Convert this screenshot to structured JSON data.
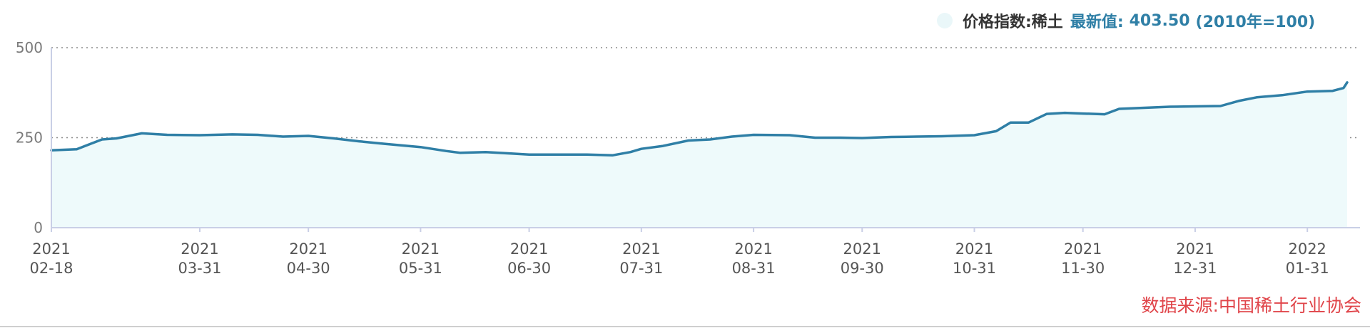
{
  "legend": {
    "swatch_color": "#eaf7f9",
    "series_label": "价格指数:稀土",
    "latest_label": "最新值:",
    "latest_value": "403.50",
    "base_note": "(2010年=100)"
  },
  "source": {
    "label": "数据来源:",
    "name": "中国稀土行业协会"
  },
  "chart_data": {
    "type": "area",
    "series": [
      {
        "name": "价格指数:稀土",
        "color": "#2f7fa6",
        "fill": "#eefafb"
      }
    ],
    "x_start": "2021-02-18",
    "x_end": "2022-02-11",
    "ylim": [
      0,
      500
    ],
    "yticks": [
      0,
      250,
      500
    ],
    "grid": "dotted horizontal at 250 and 500",
    "x_ticks": [
      {
        "date": "2021-02-18",
        "year": "2021",
        "md": "02-18"
      },
      {
        "date": "2021-03-31",
        "year": "2021",
        "md": "03-31"
      },
      {
        "date": "2021-04-30",
        "year": "2021",
        "md": "04-30"
      },
      {
        "date": "2021-05-31",
        "year": "2021",
        "md": "05-31"
      },
      {
        "date": "2021-06-30",
        "year": "2021",
        "md": "06-30"
      },
      {
        "date": "2021-07-31",
        "year": "2021",
        "md": "07-31"
      },
      {
        "date": "2021-08-31",
        "year": "2021",
        "md": "08-31"
      },
      {
        "date": "2021-09-30",
        "year": "2021",
        "md": "09-30"
      },
      {
        "date": "2021-10-31",
        "year": "2021",
        "md": "10-31"
      },
      {
        "date": "2021-11-30",
        "year": "2021",
        "md": "11-30"
      },
      {
        "date": "2021-12-31",
        "year": "2021",
        "md": "12-31"
      },
      {
        "date": "2022-01-31",
        "year": "2022",
        "md": "01-31"
      }
    ],
    "points": [
      [
        "2021-02-18",
        215
      ],
      [
        "2021-02-25",
        218
      ],
      [
        "2021-03-04",
        245
      ],
      [
        "2021-03-08",
        248
      ],
      [
        "2021-03-15",
        262
      ],
      [
        "2021-03-22",
        258
      ],
      [
        "2021-03-31",
        257
      ],
      [
        "2021-04-09",
        259
      ],
      [
        "2021-04-16",
        258
      ],
      [
        "2021-04-23",
        253
      ],
      [
        "2021-04-30",
        255
      ],
      [
        "2021-05-07",
        248
      ],
      [
        "2021-05-14",
        240
      ],
      [
        "2021-05-21",
        233
      ],
      [
        "2021-05-31",
        224
      ],
      [
        "2021-06-07",
        213
      ],
      [
        "2021-06-11",
        208
      ],
      [
        "2021-06-18",
        210
      ],
      [
        "2021-06-25",
        206
      ],
      [
        "2021-06-30",
        203
      ],
      [
        "2021-07-09",
        203
      ],
      [
        "2021-07-16",
        203
      ],
      [
        "2021-07-23",
        201
      ],
      [
        "2021-07-28",
        210
      ],
      [
        "2021-07-31",
        219
      ],
      [
        "2021-08-06",
        227
      ],
      [
        "2021-08-13",
        242
      ],
      [
        "2021-08-19",
        245
      ],
      [
        "2021-08-25",
        253
      ],
      [
        "2021-08-31",
        258
      ],
      [
        "2021-09-10",
        257
      ],
      [
        "2021-09-17",
        250
      ],
      [
        "2021-09-24",
        250
      ],
      [
        "2021-09-30",
        249
      ],
      [
        "2021-10-08",
        252
      ],
      [
        "2021-10-15",
        253
      ],
      [
        "2021-10-22",
        254
      ],
      [
        "2021-10-31",
        257
      ],
      [
        "2021-11-06",
        268
      ],
      [
        "2021-11-10",
        292
      ],
      [
        "2021-11-15",
        292
      ],
      [
        "2021-11-20",
        316
      ],
      [
        "2021-11-25",
        319
      ],
      [
        "2021-11-30",
        317
      ],
      [
        "2021-12-06",
        315
      ],
      [
        "2021-12-10",
        330
      ],
      [
        "2021-12-17",
        333
      ],
      [
        "2021-12-24",
        336
      ],
      [
        "2021-12-31",
        337
      ],
      [
        "2022-01-07",
        338
      ],
      [
        "2022-01-12",
        352
      ],
      [
        "2022-01-17",
        362
      ],
      [
        "2022-01-24",
        368
      ],
      [
        "2022-01-31",
        378
      ],
      [
        "2022-02-07",
        380
      ],
      [
        "2022-02-10",
        388
      ],
      [
        "2022-02-11",
        403.5
      ]
    ]
  }
}
